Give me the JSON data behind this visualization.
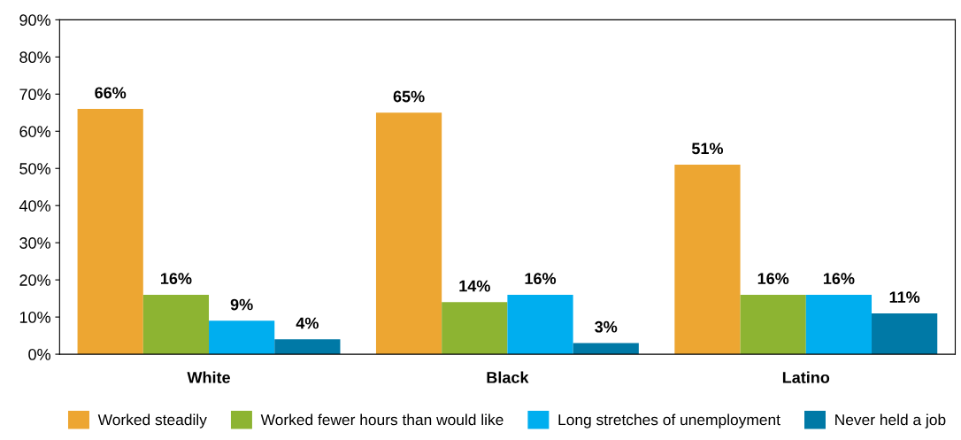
{
  "chart_data": {
    "type": "bar",
    "categories": [
      "White",
      "Black",
      "Latino"
    ],
    "series": [
      {
        "name": "Worked steadily",
        "color": "#eda632",
        "values": [
          66,
          65,
          51
        ]
      },
      {
        "name": "Worked fewer hours than would like",
        "color": "#8db432",
        "values": [
          16,
          14,
          16
        ]
      },
      {
        "name": "Long stretches of unemployment",
        "color": "#00aeef",
        "values": [
          9,
          16,
          16
        ]
      },
      {
        "name": "Never held a job",
        "color": "#0079a6",
        "values": [
          4,
          3,
          11
        ]
      }
    ],
    "ylim": [
      0,
      90
    ],
    "yticks": [
      {
        "value": 0,
        "label": "0%"
      },
      {
        "value": 10,
        "label": "10%"
      },
      {
        "value": 20,
        "label": "20%"
      },
      {
        "value": 30,
        "label": "30%"
      },
      {
        "value": 40,
        "label": "40%"
      },
      {
        "value": 50,
        "label": "50%"
      },
      {
        "value": 60,
        "label": "60%"
      },
      {
        "value": 70,
        "label": "70%"
      },
      {
        "value": 80,
        "label": "80%"
      },
      {
        "value": 90,
        "label": "90%"
      }
    ],
    "value_labels": [
      [
        "66%",
        "65%",
        "51%"
      ],
      [
        "16%",
        "14%",
        "16%"
      ],
      [
        "9%",
        "16%",
        "16%"
      ],
      [
        "4%",
        "3%",
        "11%"
      ]
    ],
    "grid": false,
    "legend": "bottom"
  }
}
